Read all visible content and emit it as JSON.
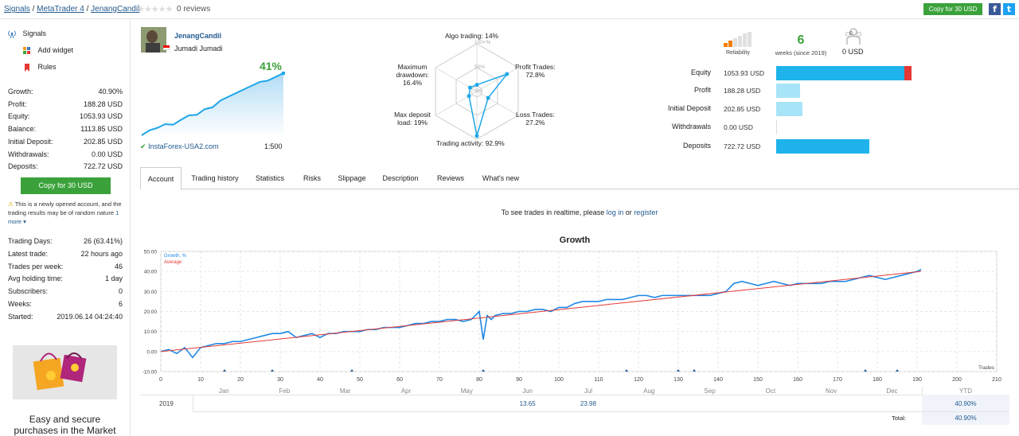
{
  "breadcrumb": {
    "signals": "Signals",
    "sep1": "/",
    "platform": "MetaTrader 4",
    "sep2": "/",
    "signal": "JenangCandil"
  },
  "stars": "★★★★★",
  "reviews_count": "0 reviews",
  "copy_button_top": "Copy for 30 USD",
  "social": {
    "facebook": "f",
    "twitter": "t"
  },
  "sidebar": {
    "nav": [
      {
        "label": "Signals",
        "icon": "antenna-icon"
      },
      {
        "label": "Add widget",
        "icon": "widget-icon"
      },
      {
        "label": "Rules",
        "icon": "bookmark-icon"
      }
    ],
    "stats": [
      {
        "k": "Growth:",
        "v": "40.90%"
      },
      {
        "k": "Profit:",
        "v": "188.28 USD"
      },
      {
        "k": "Equity:",
        "v": "1053.93 USD"
      },
      {
        "k": "Balance:",
        "v": "1113.85 USD"
      },
      {
        "k": "Initial Deposit:",
        "v": "202.85 USD"
      },
      {
        "k": "Withdrawals:",
        "v": "0.00 USD"
      },
      {
        "k": "Deposits:",
        "v": "722.72 USD"
      }
    ],
    "copy_button": "Copy for 30 USD",
    "notice": "This is a newly opened account, and the trading results may be of random nature",
    "notice_more": "1 more ▾",
    "stats2": [
      {
        "k": "Trading Days:",
        "v": "26 (63.41%)"
      },
      {
        "k": "Latest trade:",
        "v": "22 hours ago"
      },
      {
        "k": "Trades per week:",
        "v": "46"
      },
      {
        "k": "Avg holding time:",
        "v": "1 day"
      },
      {
        "k": "Subscribers:",
        "v": "0"
      },
      {
        "k": "Weeks:",
        "v": "6"
      },
      {
        "k": "Started:",
        "v": "2019.06.14 04:24:40"
      }
    ],
    "market_text": "Easy and secure purchases in the Market"
  },
  "profile": {
    "name": "JenangCandil",
    "author": "Jumadi Jumadi",
    "growth": "41%",
    "broker": "InstaForex-USA2.com",
    "leverage": "1:500",
    "sparkline": [
      0.0,
      0.08,
      0.12,
      0.18,
      0.17,
      0.25,
      0.32,
      0.33,
      0.42,
      0.45,
      0.56,
      0.62,
      0.68,
      0.74,
      0.8,
      0.86,
      0.88,
      0.94,
      1.0
    ]
  },
  "radar": {
    "algo": "Algo trading: 14%",
    "profit": "Profit Trades:",
    "profit_v": "72.8%",
    "loss": "Loss Trades:",
    "loss_v": "27.2%",
    "activity": "Trading activity: 92.9%",
    "maxdep": "Max deposit",
    "maxdep2": "load: 19%",
    "dd": "Maximum",
    "dd2": "drawdown:",
    "dd3": "16.4%",
    "ring100": "100+%",
    "ring50": "50%",
    "ring0": "0%",
    "values": [
      0.14,
      0.728,
      0.272,
      0.929,
      0.19,
      0.164
    ]
  },
  "summary": {
    "reliability": "Reliability",
    "weeks_value": "6",
    "weeks_label": "weeks (since 2019)",
    "subscribers_value": "0",
    "subscribers_funds": "0 USD"
  },
  "bars": [
    {
      "label": "Equity",
      "value": "1053.93 USD",
      "amount": 1053.93
    },
    {
      "label": "Profit",
      "value": "188.28 USD",
      "amount": 188.28
    },
    {
      "label": "Initial Deposit",
      "value": "202.85 USD",
      "amount": 202.85
    },
    {
      "label": "Withdrawals",
      "value": "0.00 USD",
      "amount": 0
    },
    {
      "label": "Deposits",
      "value": "722.72 USD",
      "amount": 722.72
    }
  ],
  "tabs": [
    "Account",
    "Trading history",
    "Statistics",
    "Risks",
    "Slippage",
    "Description",
    "Reviews",
    "What's new"
  ],
  "realtime": {
    "pre": "To see trades in realtime, please",
    "login": "log in",
    "or": "or",
    "register": "register"
  },
  "chart_data": {
    "type": "line",
    "title": "Growth",
    "xlabel": "Trades",
    "ylabel": "",
    "xlim": [
      0,
      210
    ],
    "ylim": [
      -10,
      50
    ],
    "x_ticks": [
      "0",
      "10",
      "20",
      "30",
      "40",
      "50",
      "60",
      "70",
      "80",
      "90",
      "100",
      "110",
      "120",
      "130",
      "140",
      "150",
      "160",
      "170",
      "180",
      "190",
      "200",
      "210"
    ],
    "y_ticks": [
      "50.00",
      "40.00",
      "30.00",
      "20.00",
      "10.00",
      "0.00",
      "-10.00"
    ],
    "legend": [
      "Growth, %",
      "Average"
    ],
    "series": [
      {
        "name": "Growth, %",
        "color": "#1e88e5",
        "x": [
          0,
          2,
          4,
          6,
          8,
          10,
          12,
          14,
          16,
          18,
          20,
          22,
          24,
          26,
          28,
          30,
          32,
          34,
          36,
          38,
          40,
          42,
          44,
          46,
          48,
          50,
          52,
          54,
          56,
          58,
          60,
          62,
          64,
          66,
          68,
          70,
          72,
          74,
          76,
          78,
          80,
          81,
          82,
          83,
          84,
          86,
          88,
          90,
          92,
          94,
          96,
          98,
          100,
          102,
          104,
          106,
          108,
          110,
          112,
          114,
          116,
          118,
          120,
          122,
          124,
          126,
          128,
          130,
          132,
          134,
          136,
          138,
          140,
          142,
          144,
          146,
          148,
          150,
          152,
          154,
          156,
          158,
          160,
          162,
          164,
          166,
          168,
          170,
          172,
          174,
          176,
          178,
          180,
          182,
          184,
          186,
          188,
          190,
          191
        ],
        "y": [
          0,
          1,
          -1,
          2,
          -3,
          2,
          3,
          4,
          4,
          5,
          5,
          6,
          7,
          8,
          9,
          9,
          10,
          7,
          8,
          9,
          7,
          9,
          9,
          10,
          10,
          10,
          11,
          11,
          12,
          12,
          12,
          13,
          14,
          14,
          15,
          15,
          16,
          16,
          15,
          16,
          20,
          6,
          18,
          16,
          18,
          19,
          19,
          20,
          20,
          21,
          21,
          20,
          22,
          22,
          24,
          25,
          25,
          25,
          26,
          26,
          26,
          27,
          28,
          28,
          27,
          28,
          28,
          28,
          28,
          28,
          28,
          28,
          29,
          30,
          34,
          35,
          34,
          33,
          34,
          35,
          34,
          33,
          34,
          34,
          34,
          34,
          35,
          35,
          35,
          36,
          37,
          38,
          37,
          36,
          37,
          38,
          39,
          40,
          41
        ]
      },
      {
        "name": "Average",
        "color": "#e53935",
        "x": [
          0,
          191
        ],
        "y": [
          0,
          40
        ]
      }
    ],
    "month_labels": [
      "Jan",
      "Feb",
      "Mar",
      "Apr",
      "May",
      "Jun",
      "Jul",
      "Aug",
      "Sep",
      "Oct",
      "Nov",
      "Dec"
    ],
    "year_row": {
      "year": "2019",
      "values": {
        "Jun": "13.65",
        "Jul": "23.98"
      },
      "ytd_label": "YTD",
      "ytd": "40.90%"
    },
    "total_label": "Total:",
    "total_value": "40.90%"
  },
  "colors": {
    "green": "#3ba23b",
    "link": "#225a8f",
    "bar_dark": "#1eb3ea",
    "bar_light": "#a8e4f8",
    "red": "#e53935"
  }
}
